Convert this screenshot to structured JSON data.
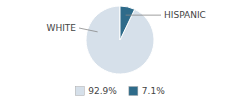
{
  "chart_data": {
    "type": "pie",
    "categories": [
      "WHITE",
      "HISPANIC"
    ],
    "values": [
      92.9,
      7.1
    ],
    "value_labels": [
      "92.9%",
      "7.1%"
    ],
    "colors": [
      "#d6e0ea",
      "#2e6b8a"
    ],
    "legend": "bottom"
  }
}
